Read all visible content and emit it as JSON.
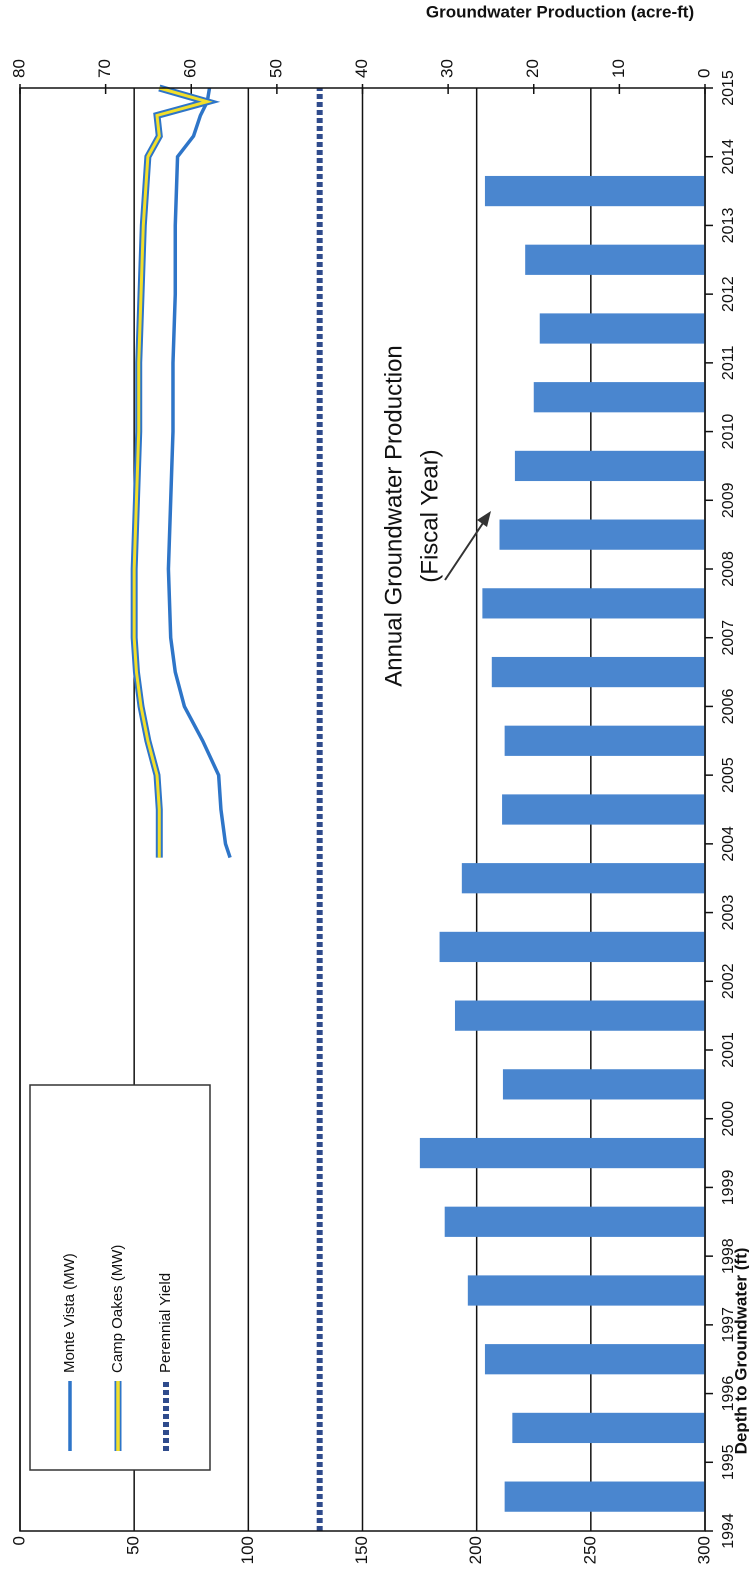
{
  "chart_data": {
    "type": "combo",
    "xlim": [
      1994,
      2015
    ],
    "xticks": [
      1994,
      1995,
      1996,
      1997,
      1998,
      1999,
      2000,
      2001,
      2002,
      2003,
      2004,
      2005,
      2006,
      2007,
      2008,
      2009,
      2010,
      2011,
      2012,
      2013,
      2014,
      2015
    ],
    "y_label": "Depth to Groundwater (ft)",
    "ylim": [
      0,
      300
    ],
    "y_inverted": true,
    "yticks": [
      0,
      50,
      100,
      150,
      200,
      250,
      300
    ],
    "y2_label": "Groundwater Production (acre-ft)",
    "y2lim": [
      0,
      80
    ],
    "y2ticks": [
      0,
      10,
      20,
      30,
      40,
      50,
      60,
      70,
      80
    ],
    "grid": true,
    "legend": "upper left",
    "bars": {
      "axis": "y2",
      "color": "#4a86cf",
      "x": [
        1995,
        1996,
        1997,
        1998,
        1999,
        2000,
        2001,
        2002,
        2003,
        2004,
        2005,
        2006,
        2007,
        2008,
        2009,
        2010,
        2011,
        2012,
        2013,
        2014
      ],
      "values": [
        23.4,
        22.5,
        25.7,
        27.7,
        30.4,
        33.3,
        23.6,
        29.2,
        31.0,
        28.4,
        23.7,
        23.4,
        24.9,
        26.0,
        24.0,
        22.2,
        20.0,
        19.3,
        21.0,
        25.7
      ]
    },
    "annotation": [
      "Annual Groundwater Production",
      "(Fiscal Year)"
    ],
    "series": [
      {
        "name": "Monte Vista (MW)",
        "type": "line",
        "color": "#2e75c8",
        "x": [
          2003.8,
          2004,
          2004.5,
          2005,
          2005.5,
          2006,
          2006.5,
          2007,
          2008,
          2009,
          2010,
          2011,
          2012,
          2013,
          2014,
          2014.3,
          2014.6,
          2014.8,
          2015
        ],
        "values": [
          92,
          90,
          88,
          87,
          80,
          72,
          68,
          66,
          65,
          66,
          67,
          67,
          68,
          68,
          69,
          76,
          79,
          82,
          83
        ]
      },
      {
        "name": "Camp Oakes (MW)",
        "type": "outlined",
        "color": "#f2df2a",
        "outline": "#2e75c8",
        "x": [
          2003.8,
          2004.5,
          2005,
          2005.5,
          2006,
          2006.5,
          2007,
          2008,
          2009,
          2010,
          2011,
          2012,
          2013,
          2014,
          2014.3,
          2014.6,
          2014.8,
          2015
        ],
        "values": [
          61,
          61,
          60,
          56,
          53,
          51,
          50,
          50,
          51,
          52,
          52,
          53,
          54,
          56,
          61,
          60,
          82,
          61
        ]
      },
      {
        "name": "Perennial Yield",
        "type": "dashed",
        "color": "#2f4b8c",
        "axis": "y2",
        "x": [
          1994,
          2015
        ],
        "values": [
          45,
          45
        ]
      }
    ]
  }
}
